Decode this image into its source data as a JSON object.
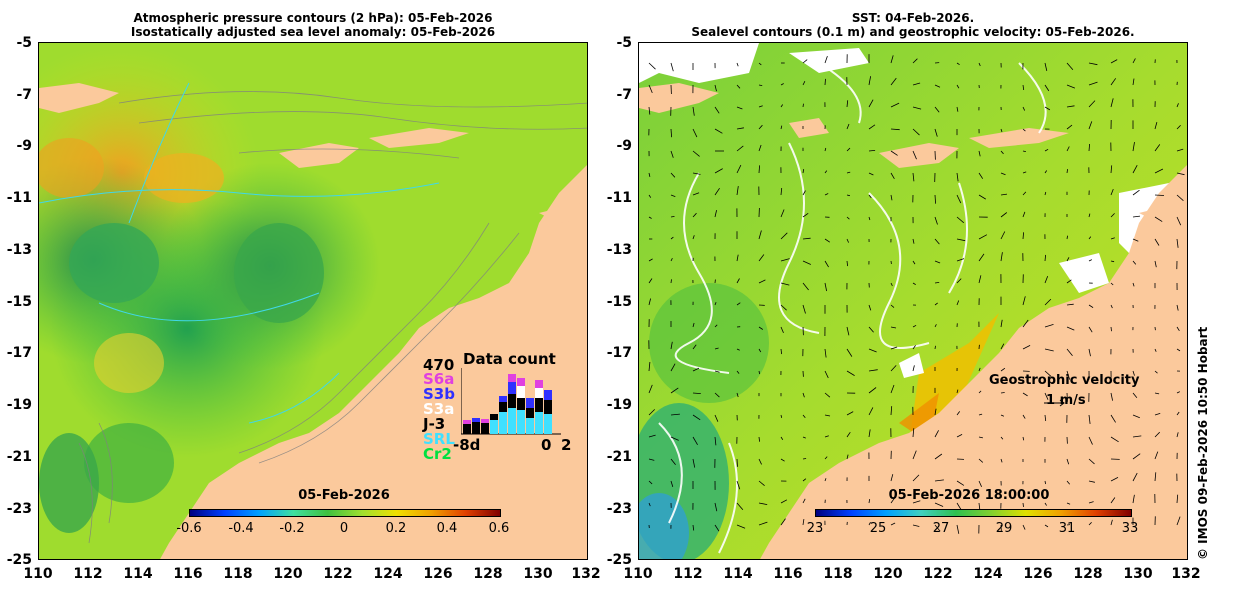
{
  "left_panel": {
    "title_line1": "Atmospheric pressure contours (2 hPa): 05-Feb-2026",
    "title_line2": "Isostatically adjusted sea level anomaly: 05-Feb-2026",
    "colorbar": {
      "date_label": "05-Feb-2026",
      "ticks": [
        "-0.6",
        "-0.4",
        "-0.2",
        "0",
        "0.2",
        "0.4",
        "0.6"
      ],
      "range": [
        -0.6,
        0.6
      ]
    },
    "data_count": {
      "title": "Data count",
      "max_label": "470",
      "missions": [
        {
          "name": "S6a",
          "color": "#e040e0"
        },
        {
          "name": "S3b",
          "color": "#3030ff"
        },
        {
          "name": "S3a",
          "color": "#ffffff"
        },
        {
          "name": "J-3",
          "color": "#000000"
        },
        {
          "name": "SRL",
          "color": "#40e0ff"
        },
        {
          "name": "Cr2",
          "color": "#00e040"
        }
      ],
      "x_labels": [
        "-8d",
        "0",
        "2"
      ]
    }
  },
  "right_panel": {
    "title_line1": "SST: 04-Feb-2026.",
    "title_line2": "Sealevel contours (0.1 m) and geostrophic velocity: 05-Feb-2026.",
    "colorbar": {
      "date_label": "05-Feb-2026 18:00:00",
      "ticks": [
        "23",
        "25",
        "27",
        "29",
        "31",
        "33"
      ],
      "range": [
        23,
        33
      ]
    },
    "velocity_legend": {
      "title": "Geostrophic velocity",
      "scale": "1 m/s"
    }
  },
  "axes": {
    "y_ticks": [
      "-5",
      "-7",
      "-9",
      "-11",
      "-13",
      "-15",
      "-17",
      "-19",
      "-21",
      "-23",
      "-25"
    ],
    "x_ticks": [
      "110",
      "112",
      "114",
      "116",
      "118",
      "120",
      "122",
      "124",
      "126",
      "128",
      "130",
      "132"
    ]
  },
  "copyright": "© IMOS 09-Feb-2026 10:50 Hobart",
  "colors": {
    "land": "#fbc99c",
    "sla_mid": "#7ad83a",
    "sst_mid": "#8cd63a"
  }
}
